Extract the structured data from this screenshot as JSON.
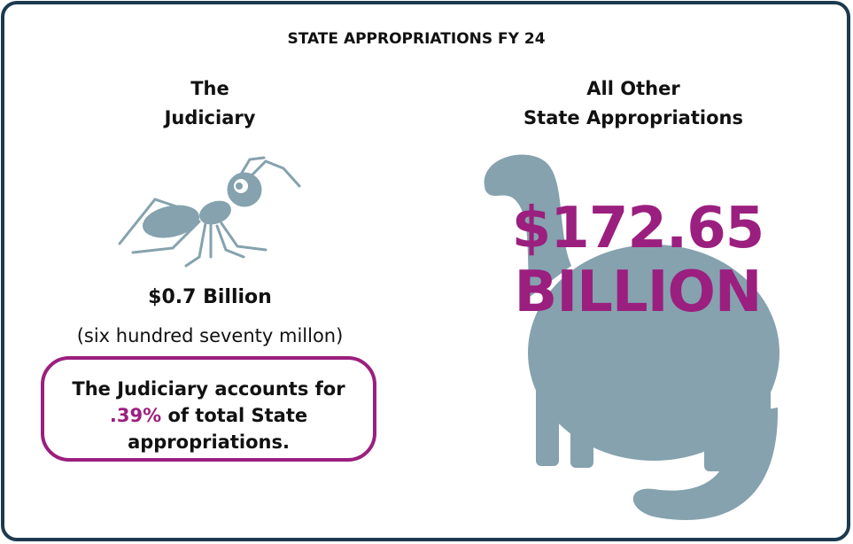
{
  "title": "STATE APPROPRIATIONS FY 24",
  "left": {
    "heading": [
      "The",
      "Judiciary"
    ],
    "amount": "$0.7 Billion",
    "note": "(six hundred seventy millon)",
    "callout": {
      "before": "The Judiciary accounts for",
      "highlight": ".39%",
      "after": "of total State appropriations."
    }
  },
  "right": {
    "heading": [
      "All Other",
      "State Appropriations"
    ],
    "amount": [
      "$172.65",
      "BILLION"
    ]
  }
}
